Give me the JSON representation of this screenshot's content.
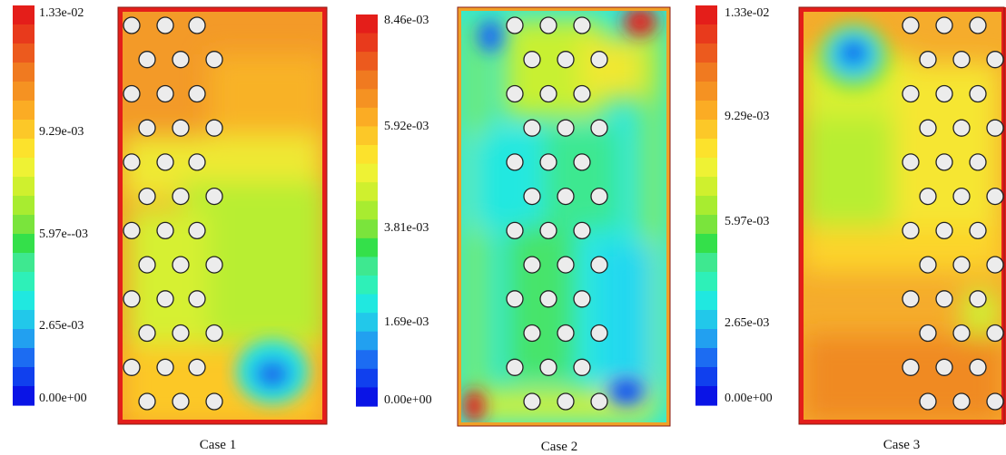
{
  "colors": {
    "scale": [
      "#0a14e6",
      "#1040ee",
      "#1c6cf2",
      "#22a0f0",
      "#22c8ea",
      "#20e8e0",
      "#2ef0b8",
      "#3ee890",
      "#34e04a",
      "#7ae43c",
      "#a8ec30",
      "#cff02e",
      "#eef234",
      "#fce22c",
      "#fcc828",
      "#fbac24",
      "#f59222",
      "#f07a20",
      "#ec5a1e",
      "#e83a1c",
      "#e41e1a"
    ],
    "outline": "#8a1a12",
    "tube_fill": "#ececec",
    "tube_stroke": "#222222"
  },
  "panels": [
    {
      "id": "case-1",
      "caption": "Case 1",
      "legend_ticks": [
        "1.33e-02",
        "9.29e-03",
        "5.97e--03",
        "2.65e-03",
        "0.00e+00"
      ],
      "background": "#f4a02a",
      "tubes_left": true
    },
    {
      "id": "case-2",
      "caption": "Case 2",
      "legend_ticks": [
        "8.46e-03",
        "5.92e-03",
        "3.81e-03",
        "1.69e-03",
        "0.00e+00"
      ],
      "background": "#30e6d8",
      "tubes_left": false
    },
    {
      "id": "case-3",
      "caption": "Case 3",
      "legend_ticks": [
        "1.33e-02",
        "9.29e-03",
        "5.97e-03",
        "2.65e-03",
        "0.00e+00"
      ],
      "background": "#f2a82c",
      "tubes_left": false
    }
  ]
}
